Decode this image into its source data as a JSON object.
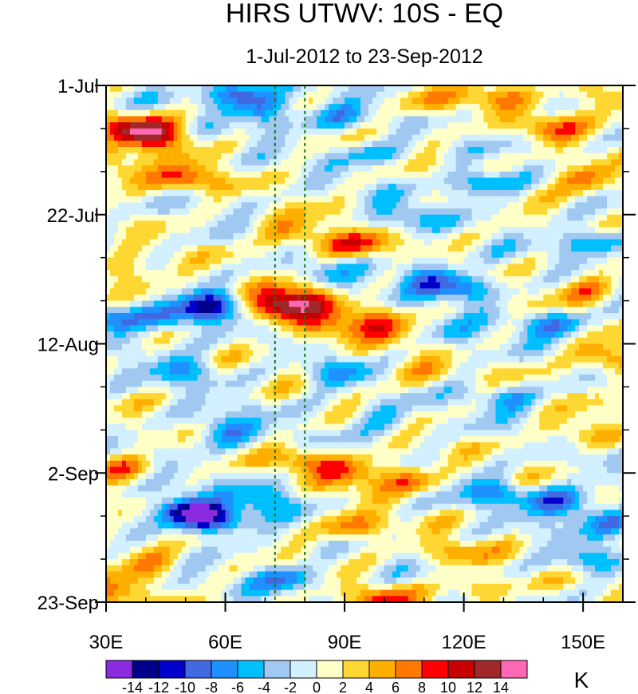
{
  "chart_data": {
    "type": "heatmap",
    "title": "HIRS UTWV: 10S - EQ",
    "subtitle": "1-Jul-2012 to 23-Sep-2012",
    "x_axis": {
      "range": [
        30,
        160
      ],
      "ticks": [
        {
          "value": 30,
          "label": "30E"
        },
        {
          "value": 60,
          "label": "60E"
        },
        {
          "value": 90,
          "label": "90E"
        },
        {
          "value": 120,
          "label": "120E"
        },
        {
          "value": 150,
          "label": "150E"
        }
      ]
    },
    "y_axis": {
      "range_days": [
        0,
        84
      ],
      "direction": "down",
      "ticks": [
        {
          "day": 0,
          "label": "1-Jul"
        },
        {
          "day": 21,
          "label": "22-Jul"
        },
        {
          "day": 42,
          "label": "12-Aug"
        },
        {
          "day": 63,
          "label": "2-Sep"
        },
        {
          "day": 84,
          "label": "23-Sep"
        }
      ]
    },
    "reference_lines_lon": [
      72.5,
      80
    ],
    "colorbar": {
      "unit": "K",
      "levels": [
        -14,
        -12,
        -10,
        -8,
        -6,
        -4,
        -2,
        0,
        2,
        4,
        6,
        8,
        10,
        12,
        14
      ],
      "colors": [
        "#8a2be2",
        "#00008c",
        "#0000cd",
        "#4169e1",
        "#1e90ff",
        "#00bfff",
        "#a0c8f0",
        "#d2f0ff",
        "#ffffc8",
        "#ffd732",
        "#ffaf00",
        "#ff7800",
        "#ff0000",
        "#c80000",
        "#a02828",
        "#ff69b4"
      ]
    },
    "anomaly_features": [
      {
        "lon": 36,
        "day": 7,
        "value": 9
      },
      {
        "lon": 44,
        "day": 8,
        "value": 10
      },
      {
        "lon": 34,
        "day": 14,
        "value": 7
      },
      {
        "lon": 50,
        "day": 15,
        "value": 8
      },
      {
        "lon": 62,
        "day": 1,
        "value": -9
      },
      {
        "lon": 70,
        "day": 4,
        "value": -8
      },
      {
        "lon": 88,
        "day": 5,
        "value": -6
      },
      {
        "lon": 112,
        "day": 3,
        "value": 5
      },
      {
        "lon": 128,
        "day": 2,
        "value": 5
      },
      {
        "lon": 142,
        "day": 7,
        "value": 6
      },
      {
        "lon": 156,
        "day": 2,
        "value": 6
      },
      {
        "lon": 98,
        "day": 11,
        "value": -5
      },
      {
        "lon": 125,
        "day": 16,
        "value": -8
      },
      {
        "lon": 150,
        "day": 15,
        "value": 8
      },
      {
        "lon": 105,
        "day": 21,
        "value": -5
      },
      {
        "lon": 152,
        "day": 25,
        "value": -7
      },
      {
        "lon": 36,
        "day": 31,
        "value": 6
      },
      {
        "lon": 93,
        "day": 26,
        "value": 8
      },
      {
        "lon": 77,
        "day": 24,
        "value": 7
      },
      {
        "lon": 110,
        "day": 31,
        "value": -7
      },
      {
        "lon": 86,
        "day": 31,
        "value": -4
      },
      {
        "lon": 120,
        "day": 33,
        "value": -8
      },
      {
        "lon": 151,
        "day": 33,
        "value": 6
      },
      {
        "lon": 72,
        "day": 36,
        "value": 12
      },
      {
        "lon": 80,
        "day": 35,
        "value": 10
      },
      {
        "lon": 86,
        "day": 40,
        "value": 7
      },
      {
        "lon": 98,
        "day": 39,
        "value": 8
      },
      {
        "lon": 57,
        "day": 36,
        "value": -11
      },
      {
        "lon": 46,
        "day": 38,
        "value": -7
      },
      {
        "lon": 31,
        "day": 38,
        "value": -9
      },
      {
        "lon": 143,
        "day": 39,
        "value": -7
      },
      {
        "lon": 118,
        "day": 41,
        "value": -4
      },
      {
        "lon": 155,
        "day": 44,
        "value": 8
      },
      {
        "lon": 107,
        "day": 46,
        "value": 5
      },
      {
        "lon": 88,
        "day": 47,
        "value": -6
      },
      {
        "lon": 50,
        "day": 46,
        "value": -6
      },
      {
        "lon": 132,
        "day": 51,
        "value": -5
      },
      {
        "lon": 60,
        "day": 56,
        "value": -8
      },
      {
        "lon": 100,
        "day": 54,
        "value": -5
      },
      {
        "lon": 148,
        "day": 56,
        "value": 5
      },
      {
        "lon": 92,
        "day": 63,
        "value": 8
      },
      {
        "lon": 106,
        "day": 64,
        "value": 7
      },
      {
        "lon": 34,
        "day": 62,
        "value": 6
      },
      {
        "lon": 80,
        "day": 61,
        "value": 6
      },
      {
        "lon": 50,
        "day": 69,
        "value": -14
      },
      {
        "lon": 58,
        "day": 71,
        "value": -10
      },
      {
        "lon": 70,
        "day": 67,
        "value": -7
      },
      {
        "lon": 128,
        "day": 66,
        "value": -7
      },
      {
        "lon": 145,
        "day": 68,
        "value": -10
      },
      {
        "lon": 158,
        "day": 71,
        "value": -6
      },
      {
        "lon": 92,
        "day": 72,
        "value": 7
      },
      {
        "lon": 40,
        "day": 77,
        "value": 7
      },
      {
        "lon": 118,
        "day": 76,
        "value": 5
      },
      {
        "lon": 150,
        "day": 77,
        "value": -5
      },
      {
        "lon": 75,
        "day": 80,
        "value": -7
      },
      {
        "lon": 32,
        "day": 83,
        "value": 7
      },
      {
        "lon": 100,
        "day": 84,
        "value": 8
      },
      {
        "lon": 124,
        "day": 82,
        "value": 5
      }
    ]
  }
}
